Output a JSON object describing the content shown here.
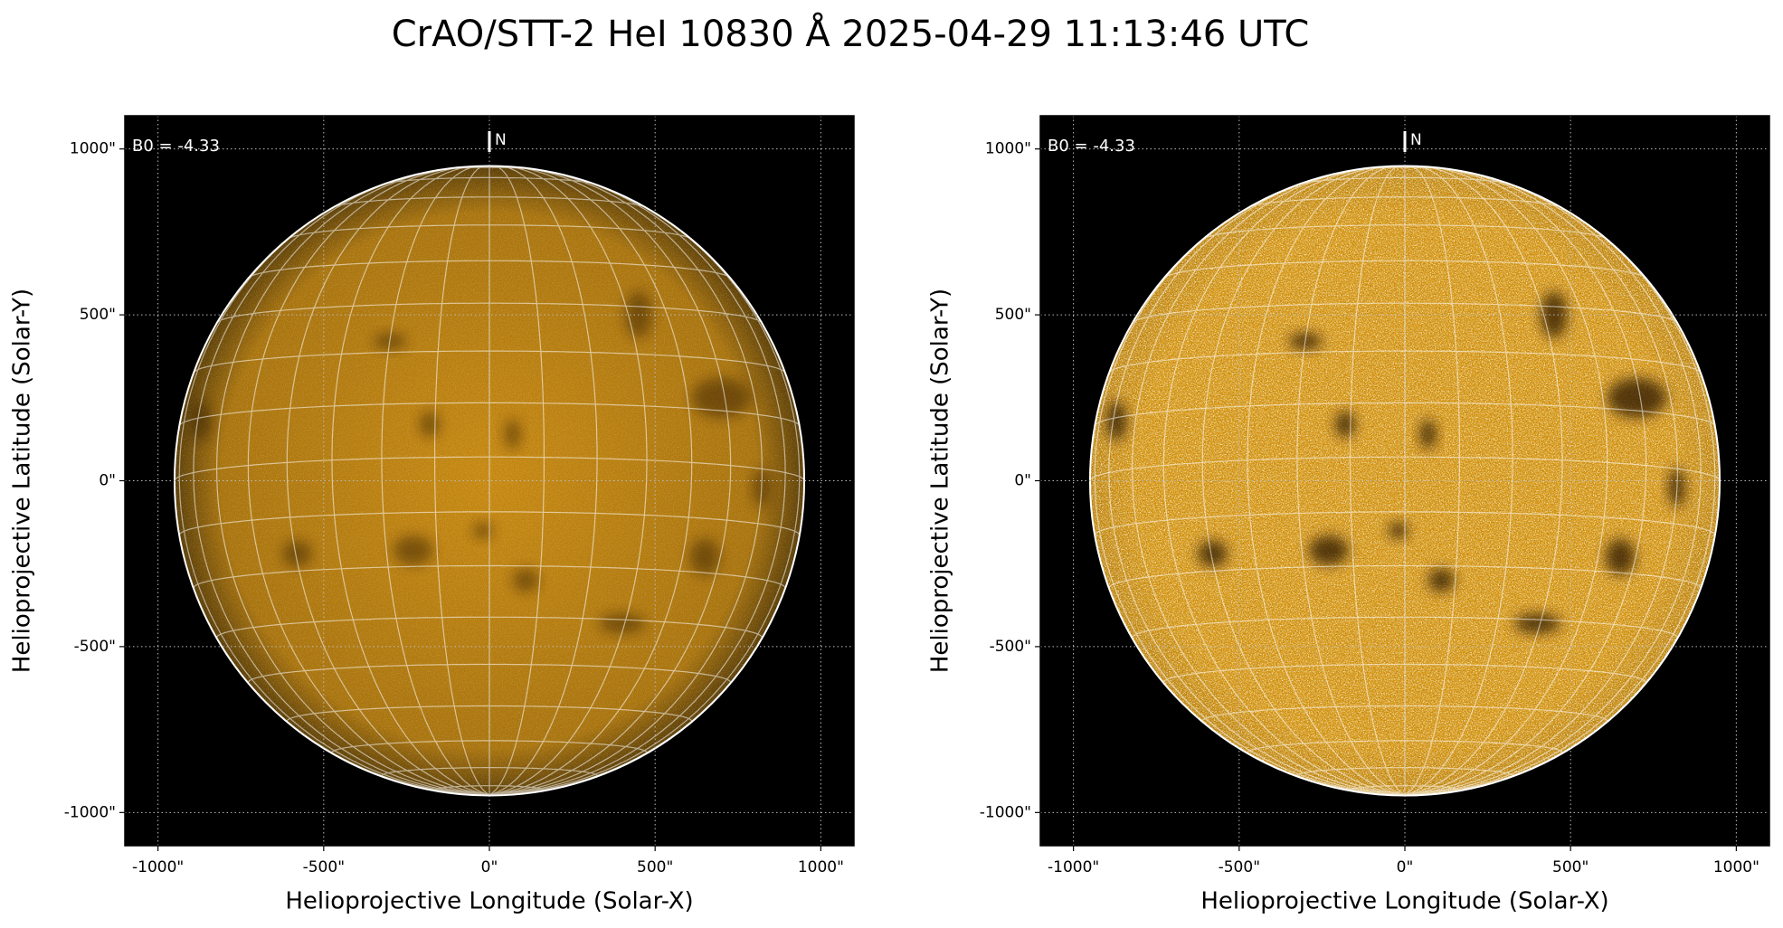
{
  "title": "CrAO/STT-2 HeI 10830 Å 2025-04-29 11:13:46 UTC",
  "chart_data": [
    {
      "type": "image",
      "xlabel": "Helioprojective Longitude (Solar-X)",
      "ylabel": "Helioprojective Latitude (Solar-Y)",
      "annotation": "B0 = -4.33",
      "north_label": "N",
      "grid": true,
      "color": "#c98a12",
      "disk_radius": 950,
      "xlim": [
        -1100,
        1100
      ],
      "ylim": [
        -1100,
        1100
      ],
      "xticks": [
        {
          "value": -1000,
          "label": "-1000\""
        },
        {
          "value": -500,
          "label": "-500\""
        },
        {
          "value": 0,
          "label": "0\""
        },
        {
          "value": 500,
          "label": "500\""
        },
        {
          "value": 1000,
          "label": "1000\""
        }
      ],
      "yticks": [
        {
          "value": -1000,
          "label": "-1000\""
        },
        {
          "value": -500,
          "label": "-500\""
        },
        {
          "value": 0,
          "label": "0\""
        },
        {
          "value": 500,
          "label": "500\""
        },
        {
          "value": 1000,
          "label": "1000\""
        }
      ]
    },
    {
      "type": "image",
      "xlabel": "Helioprojective Longitude (Solar-X)",
      "ylabel": "Helioprojective Latitude (Solar-Y)",
      "annotation": "B0 = -4.33",
      "north_label": "N",
      "grid": true,
      "color": "#d9960f",
      "disk_radius": 950,
      "xlim": [
        -1100,
        1100
      ],
      "ylim": [
        -1100,
        1100
      ],
      "xticks": [
        {
          "value": -1000,
          "label": "-1000\""
        },
        {
          "value": -500,
          "label": "-500\""
        },
        {
          "value": 0,
          "label": "0\""
        },
        {
          "value": 500,
          "label": "500\""
        },
        {
          "value": 1000,
          "label": "1000\""
        }
      ],
      "yticks": [
        {
          "value": -1000,
          "label": "-1000\""
        },
        {
          "value": -500,
          "label": "-500\""
        },
        {
          "value": 0,
          "label": "0\""
        },
        {
          "value": 500,
          "label": "500\""
        },
        {
          "value": 1000,
          "label": "1000\""
        }
      ]
    }
  ]
}
